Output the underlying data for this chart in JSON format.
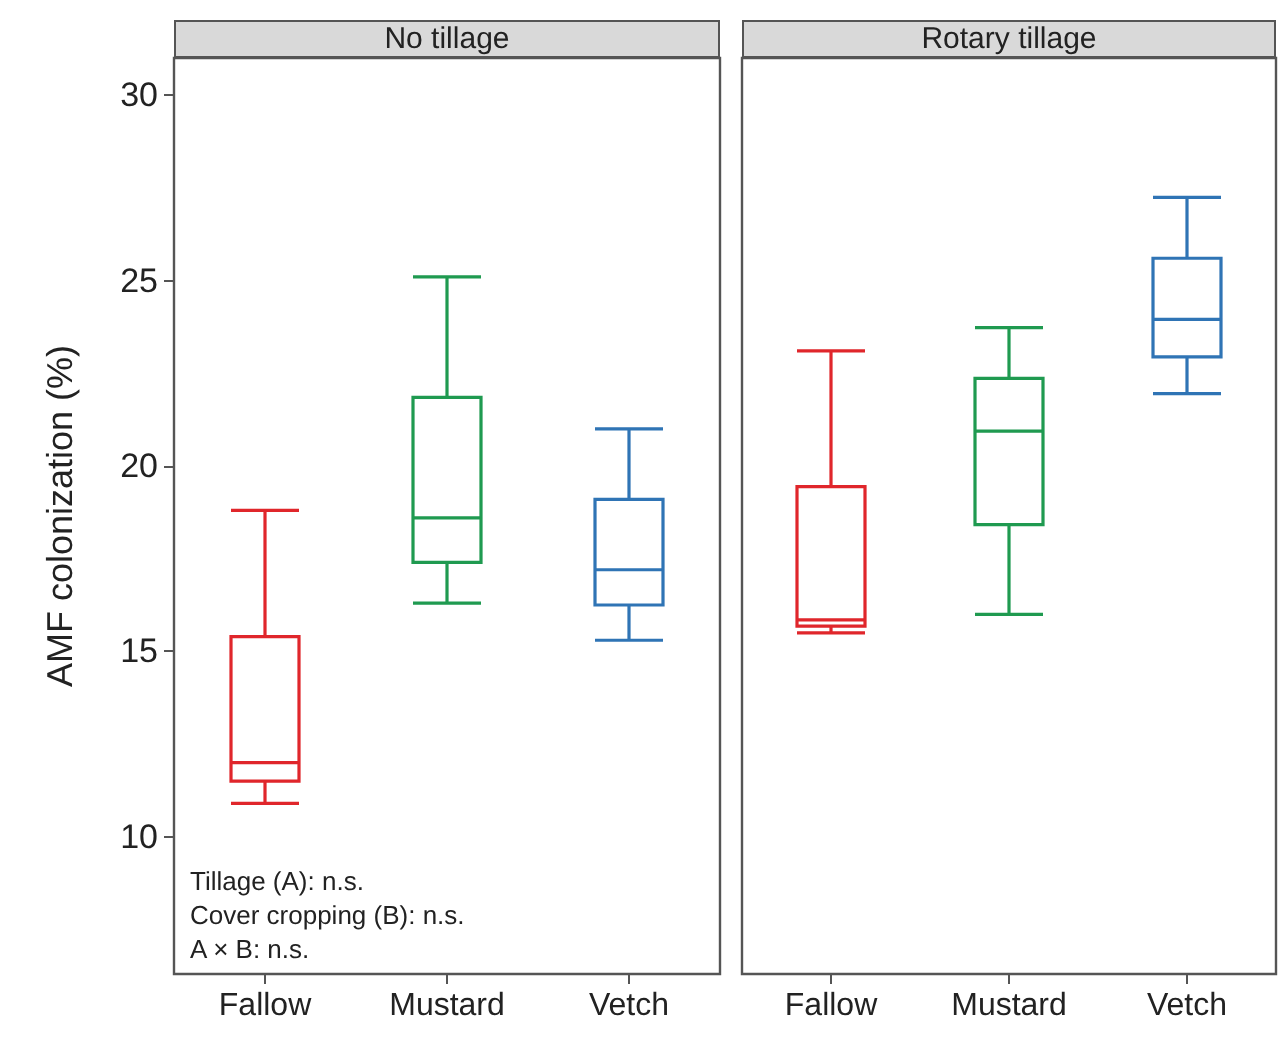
{
  "chart_data": [
    {
      "type": "box",
      "title": "No tillage",
      "ylabel": "AMF colonization (%)",
      "categories": [
        "Fallow",
        "Mustard",
        "Vetch"
      ],
      "colors": [
        "#e0262b",
        "#1f9a50",
        "#2f74b5"
      ],
      "boxes": [
        {
          "low": 10.9,
          "q1": 11.5,
          "median": 12.0,
          "q3": 15.4,
          "high": 18.8
        },
        {
          "low": 16.3,
          "q1": 17.4,
          "median": 18.6,
          "q3": 21.85,
          "high": 25.1
        },
        {
          "low": 15.3,
          "q1": 16.25,
          "median": 17.2,
          "q3": 19.1,
          "high": 21.0
        }
      ],
      "ylim": [
        6.3,
        31
      ],
      "yticks": [
        10,
        15,
        20,
        25,
        30
      ],
      "annotations": [
        "Tillage (A): n.s.",
        "Cover cropping (B): n.s.",
        "A × B: n.s."
      ]
    },
    {
      "type": "box",
      "title": "Rotary tillage",
      "categories": [
        "Fallow",
        "Mustard",
        "Vetch"
      ],
      "colors": [
        "#e0262b",
        "#1f9a50",
        "#2f74b5"
      ],
      "boxes": [
        {
          "low": 15.5,
          "q1": 15.68,
          "median": 15.85,
          "q3": 19.44,
          "high": 23.1
        },
        {
          "low": 16.0,
          "q1": 18.42,
          "median": 20.94,
          "q3": 22.36,
          "high": 23.73
        },
        {
          "low": 21.95,
          "q1": 22.94,
          "median": 23.95,
          "q3": 25.6,
          "high": 27.24
        }
      ],
      "ylim": [
        6.3,
        31
      ],
      "yticks": [
        10,
        15,
        20,
        25,
        30
      ],
      "tick_labels": "x"
    }
  ]
}
